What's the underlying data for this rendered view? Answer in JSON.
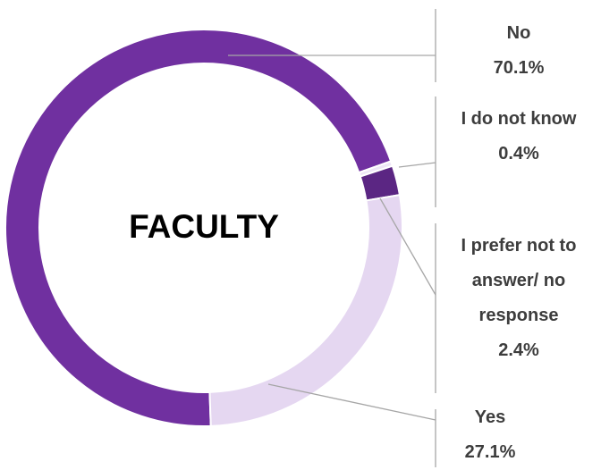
{
  "chart_data": {
    "type": "donut",
    "center_label": "FACULTY",
    "categories": [
      "No",
      "I do not know",
      "I prefer not to answer/ no response",
      "Yes"
    ],
    "values": [
      70.1,
      0.4,
      2.4,
      27.1
    ],
    "value_labels": [
      "70.1%",
      "0.4%",
      "2.4%",
      "27.1%"
    ],
    "colors": [
      "#7030a0",
      "#eee6f6",
      "#5b2683",
      "#e5d7f1"
    ]
  }
}
